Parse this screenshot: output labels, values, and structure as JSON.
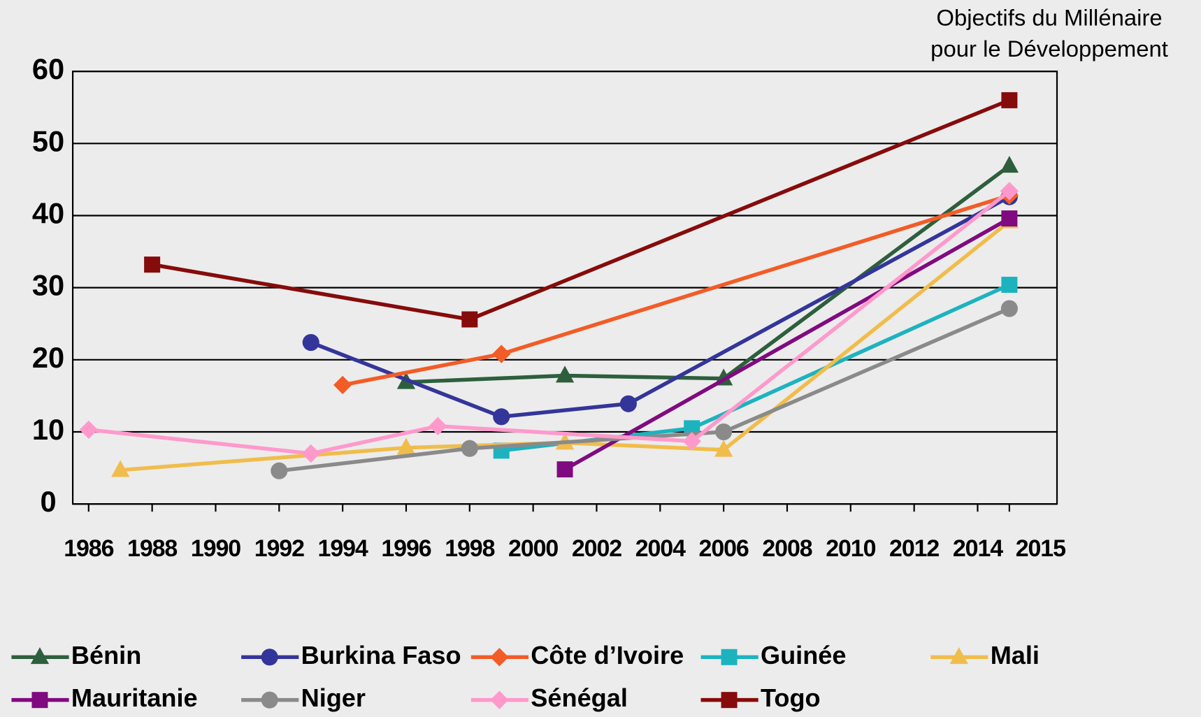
{
  "chart_data": {
    "type": "line",
    "annotation": [
      "Objectifs du Millénaire",
      "pour le Développement"
    ],
    "xlim": [
      1985.5,
      2016.5
    ],
    "xticks": [
      1986,
      1988,
      1990,
      1992,
      1994,
      1996,
      1998,
      2000,
      2002,
      2004,
      2006,
      2008,
      2010,
      2012,
      2014,
      2015
    ],
    "ylim": [
      0,
      60
    ],
    "yticks": [
      0,
      10,
      20,
      30,
      40,
      50,
      60
    ],
    "grid": true,
    "legend": "bottom",
    "series": [
      {
        "name": "Bénin",
        "color": "#2d5f3c",
        "marker": "triangle",
        "x": [
          1996,
          2001,
          2006,
          2015
        ],
        "values": [
          16.9,
          17.8,
          17.4,
          46.9
        ]
      },
      {
        "name": "Burkina Faso",
        "color": "#34359a",
        "marker": "circle",
        "x": [
          1993,
          1999,
          2003,
          2015
        ],
        "values": [
          22.4,
          12.1,
          13.9,
          42.6
        ]
      },
      {
        "name": "Côte d’Ivoire",
        "color": "#f25c27",
        "marker": "diamond",
        "x": [
          1994,
          1999,
          2015
        ],
        "values": [
          16.5,
          20.8,
          42.8
        ]
      },
      {
        "name": "Guinée",
        "color": "#1cb3bf",
        "marker": "square",
        "x": [
          1999,
          2005,
          2015
        ],
        "values": [
          7.4,
          10.5,
          30.4
        ]
      },
      {
        "name": "Mali",
        "color": "#f0bd4c",
        "marker": "triangle",
        "x": [
          1987,
          1996,
          2001,
          2006,
          2015
        ],
        "values": [
          4.7,
          7.8,
          8.5,
          7.5,
          39.2
        ]
      },
      {
        "name": "Mauritanie",
        "color": "#800a80",
        "marker": "square",
        "x": [
          2001,
          2015
        ],
        "values": [
          4.8,
          39.6
        ]
      },
      {
        "name": "Niger",
        "color": "#8a8a8a",
        "marker": "circle",
        "x": [
          1992,
          1998,
          2006,
          2015
        ],
        "values": [
          4.6,
          7.7,
          10.0,
          27.1
        ]
      },
      {
        "name": "Sénégal",
        "color": "#ff99cc",
        "marker": "diamond",
        "x": [
          1986,
          1993,
          1997,
          2005,
          2015
        ],
        "values": [
          10.3,
          7.0,
          10.8,
          8.7,
          43.4
        ]
      },
      {
        "name": "Togo",
        "color": "#860b0b",
        "marker": "square",
        "x": [
          1988,
          1998,
          2015
        ],
        "values": [
          33.2,
          25.6,
          56.0
        ]
      }
    ]
  }
}
